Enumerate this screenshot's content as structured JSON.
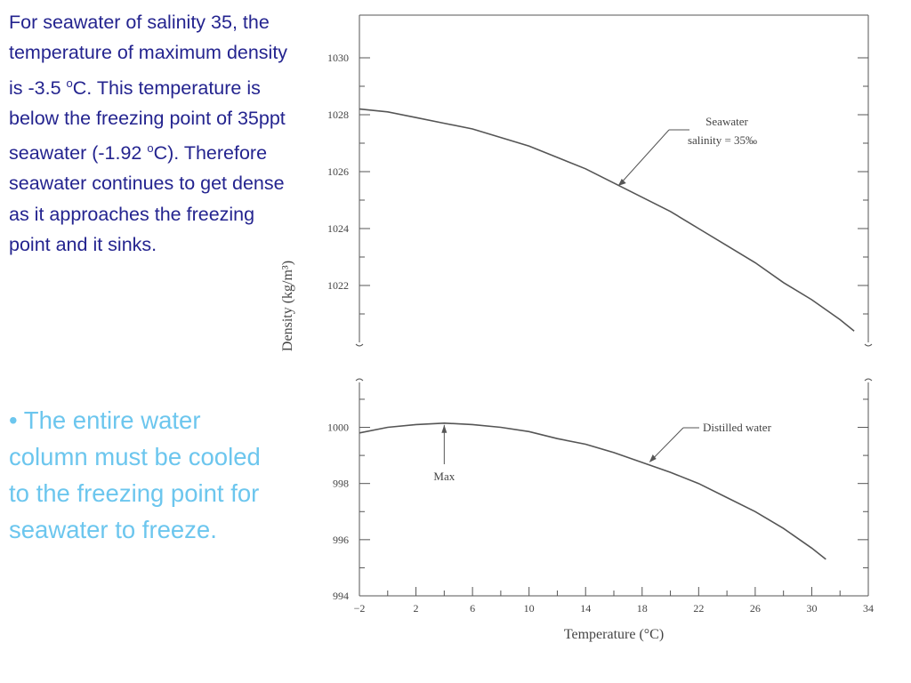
{
  "slide": {
    "paragraph1": {
      "a": "For seawater of salinity 35, the temperature of maximum density is -3.5 ",
      "sup1": "o",
      "b": "C.   This temperature is below the freezing point of 35ppt seawater (-1.92 ",
      "sup2": "o",
      "c": "C).  Therefore seawater continues to get dense as it approaches the freezing point and it sinks."
    },
    "paragraph2": "• The entire water column must be cooled to the freezing point for seawater to freeze.",
    "colors": {
      "body_text": "#24248f",
      "bullet_text": "#6cc6ee",
      "curve": "#555555"
    }
  },
  "chart_data": [
    {
      "type": "line",
      "panel": "top",
      "ylabel": "Density (kg/m³)",
      "yticks": [
        "1022",
        "1024",
        "1026",
        "1028",
        "1030"
      ],
      "ylim": [
        1020,
        1031.5
      ],
      "xlim": [
        -2,
        34
      ],
      "series": [
        {
          "name": "Seawater salinity = 35‰",
          "x": [
            -2,
            0,
            2,
            4,
            6,
            8,
            10,
            12,
            14,
            16,
            18,
            20,
            22,
            24,
            26,
            28,
            30,
            32,
            33
          ],
          "y": [
            1028.2,
            1028.1,
            1027.9,
            1027.7,
            1027.5,
            1027.2,
            1026.9,
            1026.5,
            1026.1,
            1025.6,
            1025.1,
            1024.6,
            1024.0,
            1023.4,
            1022.8,
            1022.1,
            1021.5,
            1020.8,
            1020.4
          ]
        }
      ],
      "annotations": [
        {
          "lines": [
            "Seawater",
            "salinity = 35‰"
          ],
          "target_x": 16.3,
          "target_y": 1025.5
        }
      ],
      "grid": false,
      "legend": "none"
    },
    {
      "type": "line",
      "panel": "bottom",
      "xlabel": "Temperature (°C)",
      "xticks": [
        "−2",
        "2",
        "6",
        "10",
        "14",
        "18",
        "22",
        "26",
        "30",
        "34"
      ],
      "yticks": [
        "994",
        "996",
        "998",
        "1000"
      ],
      "ylim": [
        994,
        1001.6
      ],
      "xlim": [
        -2,
        34
      ],
      "series": [
        {
          "name": "Distilled water",
          "x": [
            -2,
            0,
            2,
            4,
            6,
            8,
            10,
            12,
            14,
            16,
            18,
            20,
            22,
            24,
            26,
            28,
            30,
            31
          ],
          "y": [
            999.8,
            1000.0,
            1000.1,
            1000.15,
            1000.1,
            1000.0,
            999.85,
            999.6,
            999.4,
            999.1,
            998.75,
            998.4,
            998.0,
            997.5,
            997.0,
            996.4,
            995.7,
            995.3
          ]
        }
      ],
      "annotations": [
        {
          "lines": [
            "Distilled water"
          ],
          "target_x": 18.5,
          "target_y": 998.75
        },
        {
          "lines": [
            "Max"
          ],
          "target_x": 4,
          "target_y": 1000.15
        }
      ],
      "grid": false,
      "legend": "none"
    }
  ]
}
